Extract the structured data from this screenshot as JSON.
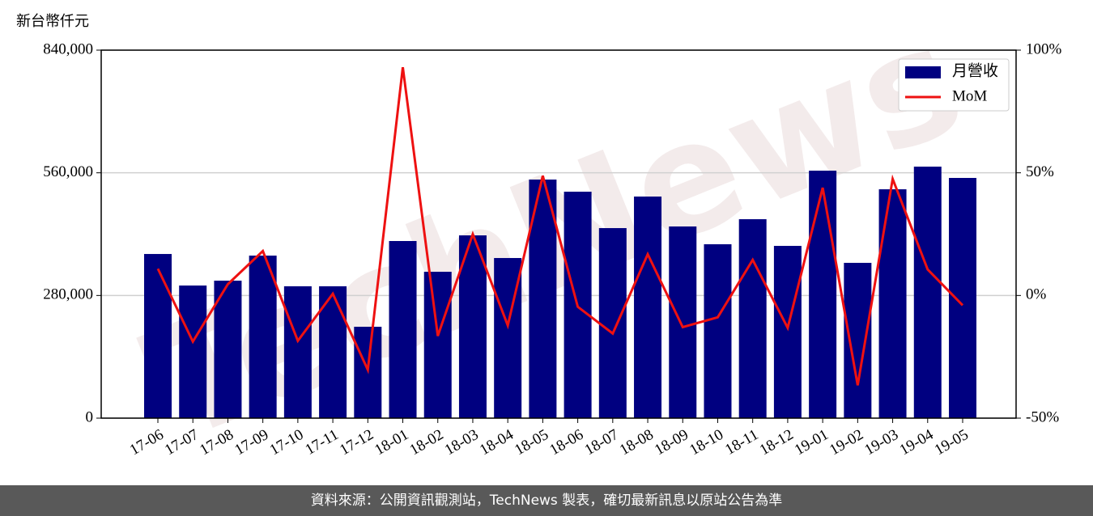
{
  "chart_data": {
    "type": "bar-line",
    "y_axis_label": "新台幣仟元",
    "watermark": "TechNews",
    "categories": [
      "17-06",
      "17-07",
      "17-08",
      "17-09",
      "17-10",
      "17-11",
      "17-12",
      "18-01",
      "18-02",
      "18-03",
      "18-04",
      "18-05",
      "18-06",
      "18-07",
      "18-08",
      "18-09",
      "18-10",
      "18-11",
      "18-12",
      "19-01",
      "19-02",
      "19-03",
      "19-04",
      "19-05"
    ],
    "series": [
      {
        "name": "月營收",
        "color": "#000080",
        "kind": "bar",
        "values": [
          374700,
          302700,
          313800,
          371000,
          301000,
          301000,
          208600,
          404300,
          334100,
          417200,
          365500,
          544600,
          516900,
          433800,
          505800,
          437500,
          396900,
          454100,
          393200,
          564900,
          354500,
          522400,
          574100,
          548300
        ]
      },
      {
        "name": "MoM",
        "color": "#ee1111",
        "kind": "line",
        "axis": "y2",
        "values": [
          10.9,
          -18.8,
          4.6,
          18.1,
          -18.5,
          0.7,
          -30.3,
          93,
          -16.5,
          25,
          -12.2,
          48.8,
          -4.6,
          -15.5,
          16.8,
          -12.9,
          -8.9,
          14.5,
          -13.2,
          43.9,
          -36.6,
          47.5,
          10.6,
          -4
        ]
      }
    ],
    "ylim": [
      0,
      840000
    ],
    "yticks": [
      0,
      {
        "value": 280000,
        "label": "280,000"
      },
      {
        "value": 560000,
        "label": "560,000"
      },
      {
        "value": 840000,
        "label": "840,000"
      }
    ],
    "y2lim": [
      -50,
      100
    ],
    "y2ticks": [
      {
        "value": -50,
        "label": "-50%"
      },
      {
        "value": 0,
        "label": "0%"
      },
      {
        "value": 50,
        "label": "50%"
      },
      {
        "value": 100,
        "label": "100%"
      }
    ],
    "grid": true,
    "legend": "upper right",
    "footer": "資料來源：公開資訊觀測站，TechNews 製表，確切最新訊息以原站公告為準"
  }
}
